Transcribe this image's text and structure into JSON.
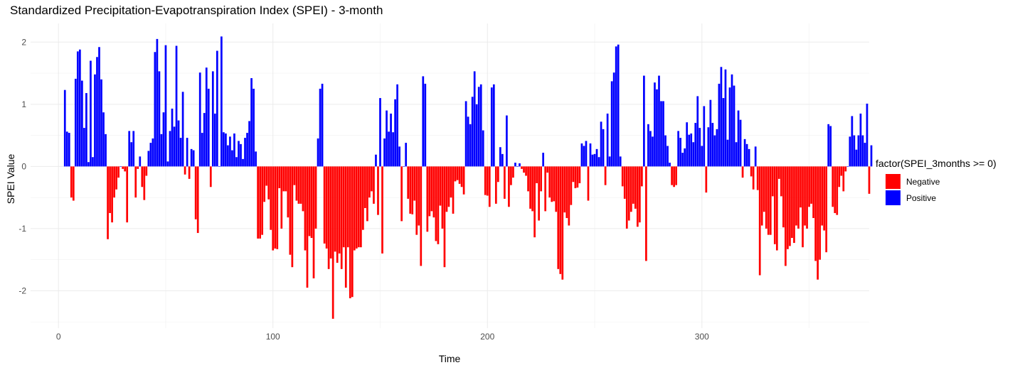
{
  "chart_data": {
    "type": "bar",
    "title": "Standardized Precipitation-Evapotranspiration Index (SPEI) - 3-month",
    "xlabel": "Time",
    "ylabel": "SPEI Value",
    "xlim": [
      -13,
      378
    ],
    "ylim": [
      -2.6,
      2.3
    ],
    "xticks": [
      0,
      100,
      200,
      300
    ],
    "yticks": [
      -2,
      -1,
      0,
      1,
      2
    ],
    "grid": true,
    "legend": {
      "title": "factor(SPEI_3months >= 0)",
      "position": "right",
      "entries": [
        {
          "label": "Negative",
          "color": "#ff0000"
        },
        {
          "label": "Positive",
          "color": "#0000ff"
        }
      ]
    },
    "x_start": 3,
    "values": [
      1.23,
      0.56,
      0.54,
      -0.5,
      -0.55,
      1.41,
      1.85,
      1.88,
      1.38,
      0.62,
      1.18,
      0.07,
      1.7,
      0.15,
      1.48,
      1.76,
      1.92,
      1.4,
      0.87,
      0.52,
      -1.17,
      -0.75,
      -0.9,
      -0.5,
      -0.37,
      -0.18,
      0.0,
      -0.04,
      -0.08,
      -0.9,
      0.57,
      0.39,
      0.57,
      -0.5,
      -0.04,
      0.16,
      -0.33,
      -0.54,
      -0.15,
      0.25,
      0.38,
      0.45,
      1.84,
      2.05,
      1.53,
      0.52,
      0.87,
      1.95,
      0.08,
      0.57,
      0.93,
      0.64,
      1.94,
      0.74,
      0.46,
      1.2,
      -0.13,
      0.46,
      -0.2,
      0.28,
      0.26,
      -0.85,
      -1.07,
      1.51,
      0.54,
      0.86,
      1.59,
      1.25,
      -0.33,
      1.53,
      0.85,
      1.86,
      0.0,
      2.09,
      0.55,
      0.53,
      0.34,
      0.48,
      0.26,
      0.53,
      0.15,
      0.41,
      0.36,
      0.12,
      0.46,
      0.54,
      0.73,
      1.42,
      1.25,
      0.24,
      -1.16,
      -1.16,
      -1.1,
      -0.57,
      -0.31,
      -0.53,
      -1.02,
      -1.35,
      -1.32,
      -1.33,
      -0.35,
      -1.0,
      -0.4,
      -0.4,
      -0.82,
      -1.42,
      -1.62,
      -0.3,
      -0.55,
      -0.6,
      -0.6,
      -0.72,
      -1.35,
      -1.95,
      -1.12,
      -1.15,
      -1.8,
      -1.0,
      0.45,
      1.25,
      1.33,
      -1.24,
      -1.32,
      -1.65,
      -1.48,
      -2.45,
      -1.37,
      -1.55,
      -1.4,
      -1.65,
      -1.3,
      -1.95,
      -1.3,
      -2.12,
      -2.1,
      -1.35,
      -1.32,
      -1.3,
      -1.3,
      -1.02,
      -0.67,
      -0.88,
      -0.5,
      -0.4,
      -0.6,
      0.19,
      -0.78,
      1.1,
      -1.4,
      0.45,
      0.9,
      0.56,
      0.85,
      0.55,
      1.08,
      1.32,
      0.32,
      -0.88,
      0.0,
      0.38,
      -0.52,
      -0.76,
      -0.77,
      -0.55,
      -1.1,
      -0.95,
      -1.6,
      1.45,
      1.33,
      -1.05,
      -0.8,
      -0.72,
      -0.82,
      -1.2,
      -1.25,
      -0.63,
      -1.0,
      -1.62,
      -0.73,
      -0.65,
      -0.5,
      -0.76,
      -0.24,
      -0.22,
      -0.28,
      -0.33,
      -0.45,
      1.05,
      0.8,
      0.68,
      1.12,
      1.53,
      1.0,
      1.28,
      1.32,
      0.58,
      -0.46,
      -0.47,
      -0.65,
      1.27,
      1.32,
      -0.6,
      -0.25,
      0.31,
      0.2,
      -0.52,
      0.82,
      -0.65,
      -0.3,
      -0.18,
      0.06,
      0.0,
      0.05,
      -0.04,
      -0.1,
      -0.15,
      -0.4,
      -0.68,
      -0.72,
      -1.14,
      -0.27,
      -0.87,
      -0.4,
      0.22,
      -0.72,
      -0.1,
      -0.5,
      -0.57,
      -0.56,
      -0.73,
      -1.65,
      -1.73,
      -1.82,
      -0.74,
      -0.83,
      -0.95,
      -0.62,
      -0.25,
      -0.35,
      -0.34,
      -0.27,
      0.37,
      0.33,
      0.41,
      -0.55,
      0.37,
      0.19,
      0.2,
      0.28,
      0.15,
      0.72,
      0.6,
      -0.3,
      0.85,
      0.16,
      1.37,
      1.51,
      1.93,
      1.96,
      0.16,
      -0.32,
      -0.52,
      -1.0,
      -0.87,
      -0.73,
      -0.6,
      -0.68,
      -0.97,
      -0.9,
      -0.32,
      1.46,
      -1.52,
      0.68,
      0.57,
      0.48,
      1.35,
      1.24,
      1.46,
      1.05,
      1.05,
      0.5,
      0.33,
      0.06,
      -0.3,
      -0.33,
      -0.3,
      0.57,
      0.46,
      0.22,
      0.29,
      0.71,
      0.51,
      0.53,
      0.39,
      0.7,
      1.13,
      0.62,
      0.33,
      0.97,
      -0.42,
      0.63,
      1.07,
      0.7,
      0.5,
      0.6,
      1.33,
      1.6,
      1.1,
      1.56,
      0.43,
      1.27,
      1.48,
      1.3,
      0.39,
      0.9,
      0.75,
      -0.18,
      0.44,
      0.36,
      0.28,
      -0.16,
      -0.37,
      0.32,
      -0.38,
      -1.75,
      -0.95,
      -0.73,
      -1.0,
      -1.1,
      -1.1,
      -0.48,
      -1.25,
      -1.35,
      -0.2,
      -0.48,
      -0.98,
      -1.6,
      -1.33,
      -1.28,
      -1.15,
      -1.23,
      -0.95,
      -1.0,
      -0.66,
      -1.3,
      -0.95,
      -1.0,
      -0.65,
      -0.6,
      -0.83,
      -1.52,
      -1.82,
      -1.5,
      -0.95,
      -1.03,
      -1.38,
      0.68,
      0.65,
      -0.65,
      -0.75,
      -0.78,
      -0.33,
      -0.15,
      -0.4,
      -0.08,
      0.0,
      0.48,
      0.81,
      0.5,
      0.27,
      0.5,
      0.85,
      0.5,
      0.38,
      1.01,
      -0.44,
      0.34
    ]
  }
}
